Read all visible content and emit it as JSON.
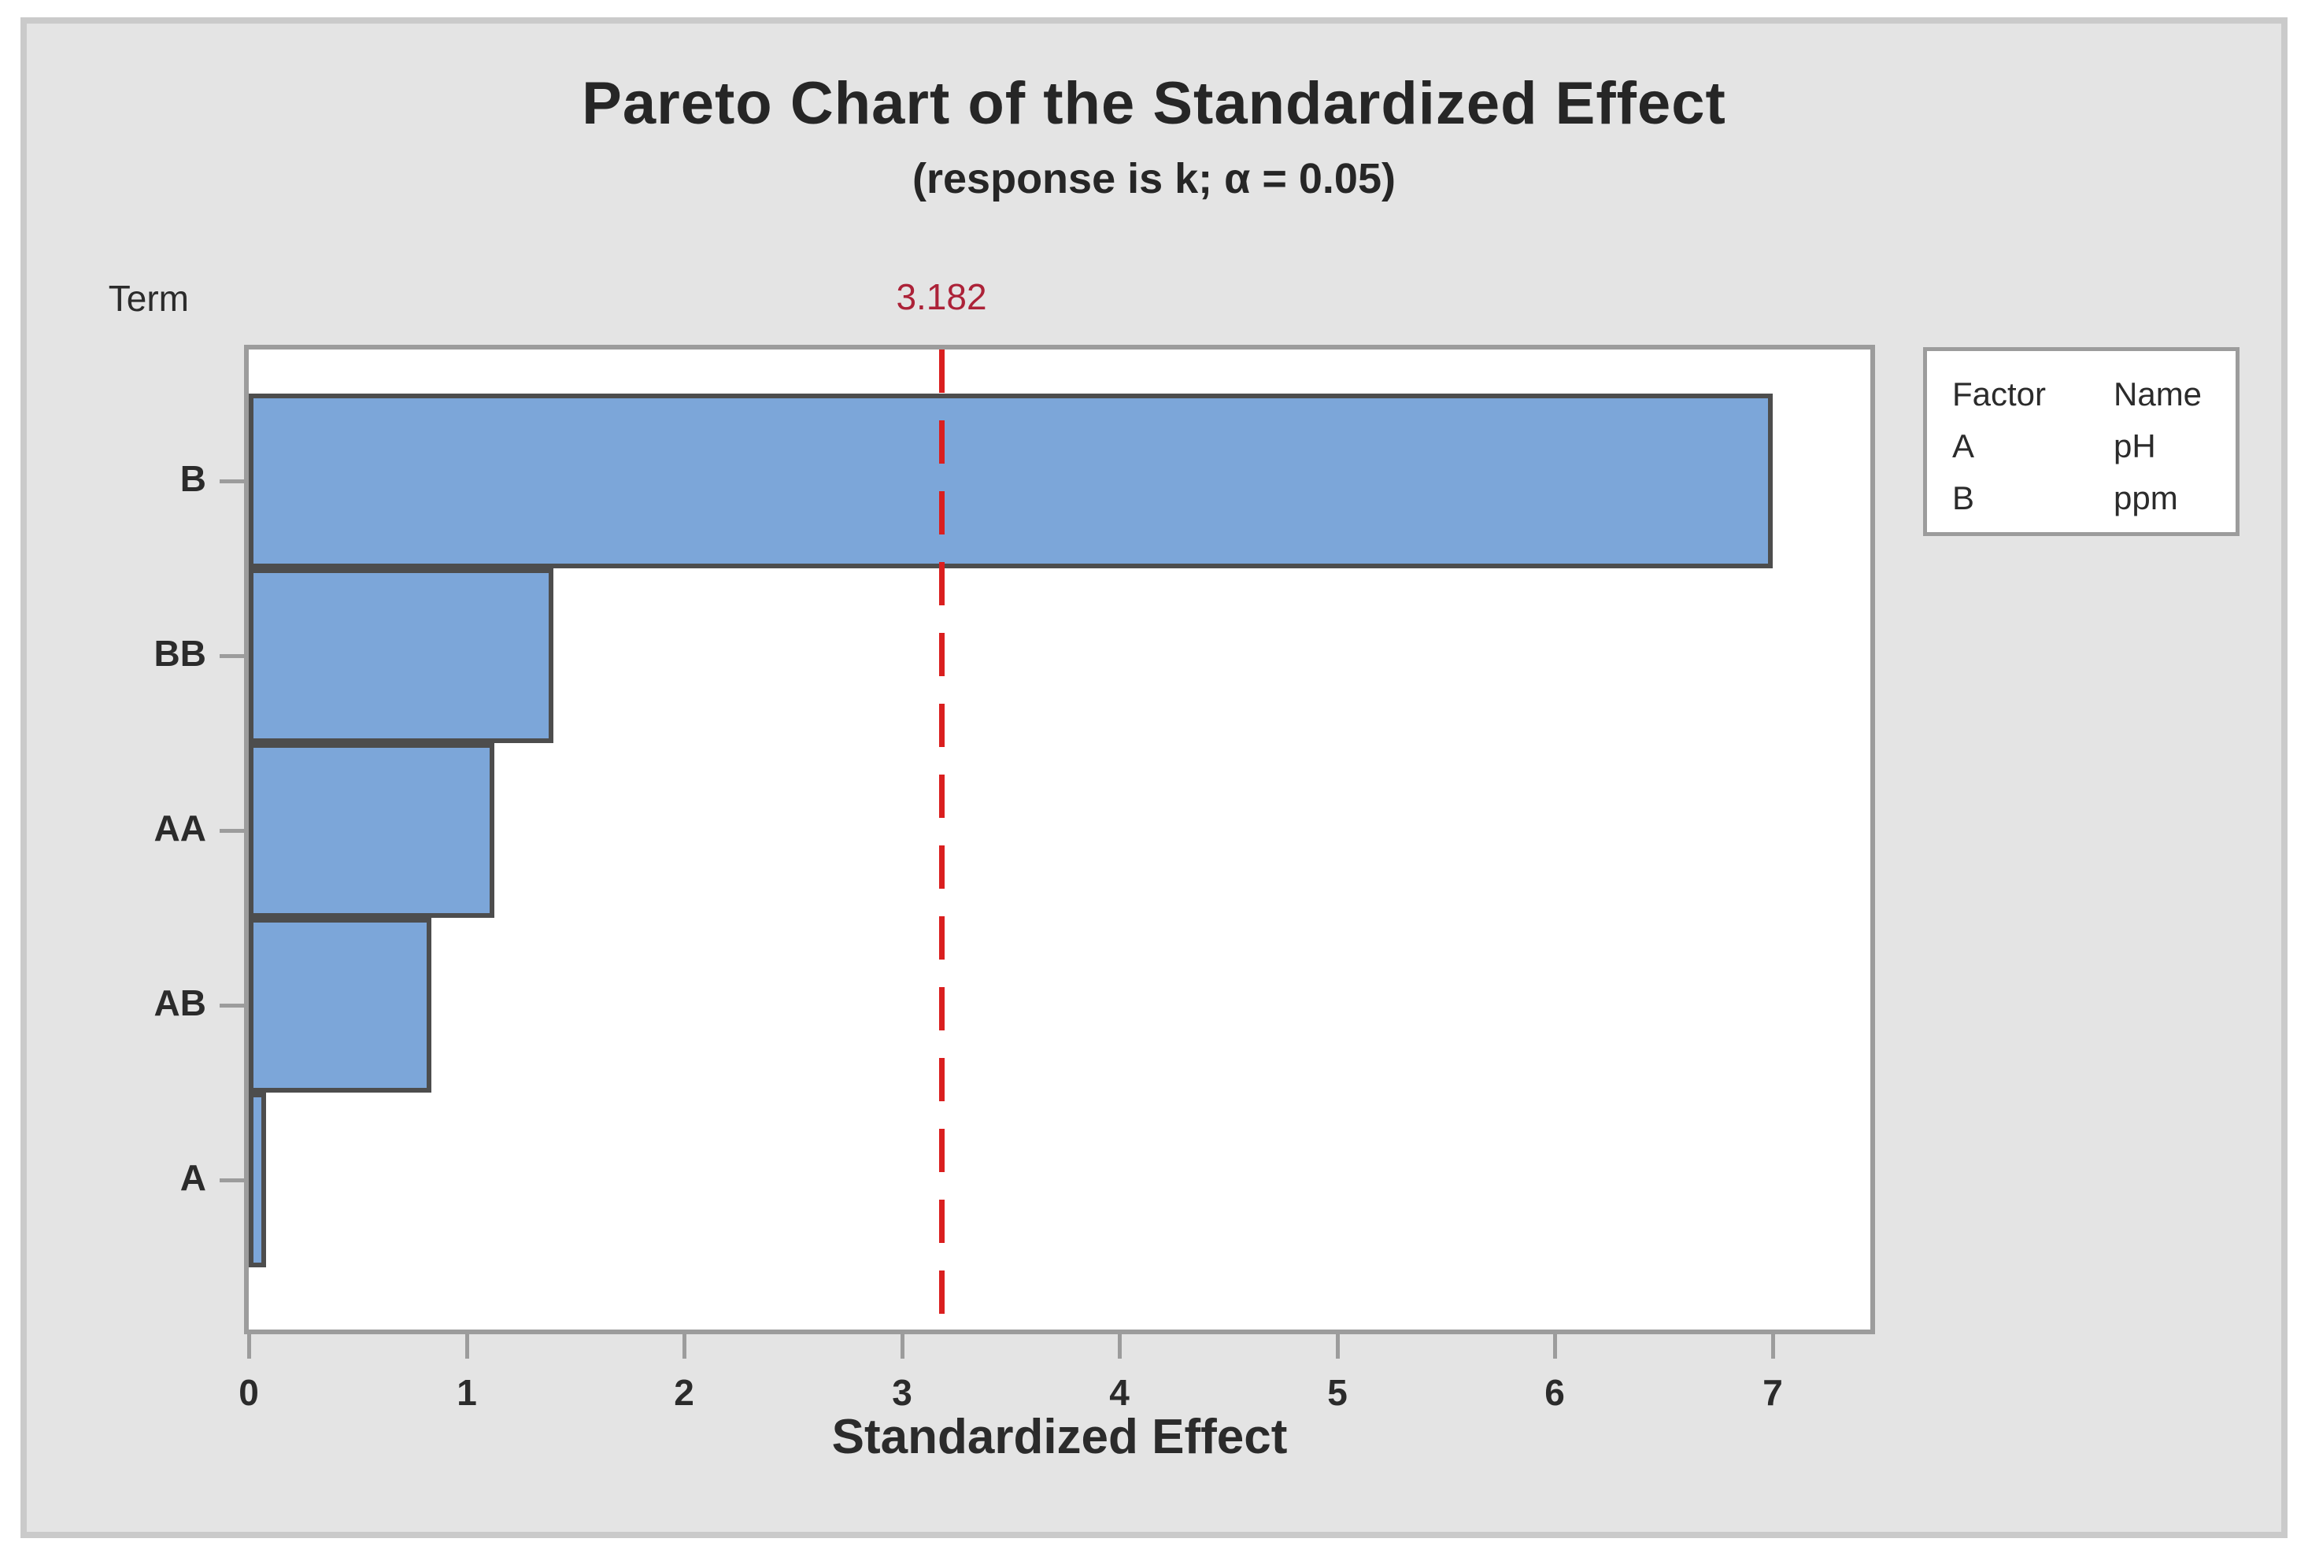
{
  "window": {
    "background": "#FFFFFF",
    "panel_background": "#E4E4E4",
    "panel_border": "#CACACA",
    "plot_background": "#FFFFFF",
    "axis_color": "#9C9C9C"
  },
  "header": {
    "title": "Pareto Chart of the Standardized Effect",
    "subtitle": "(response is k; α = 0.05)"
  },
  "y_axis": {
    "label": "Term"
  },
  "x_axis": {
    "label": "Standardized Effect"
  },
  "reference_line": {
    "value": 3.182,
    "label": "3.182",
    "label_color": "#AC2238",
    "line_color": "#DA1F1F"
  },
  "legend": {
    "header": {
      "factor": "Factor",
      "name": "Name"
    },
    "rows": [
      {
        "factor": "A",
        "name": "pH"
      },
      {
        "factor": "B",
        "name": "ppm"
      }
    ]
  },
  "chart_data": {
    "type": "bar",
    "orientation": "horizontal",
    "title": "Pareto Chart of the Standardized Effect",
    "subtitle": "(response is k; α = 0.05)",
    "response": "k",
    "alpha": 0.05,
    "categories": [
      "B",
      "BB",
      "AA",
      "AB",
      "A"
    ],
    "values": [
      7.0,
      1.4,
      1.13,
      0.84,
      0.08
    ],
    "xlabel": "Standardized Effect",
    "ylabel": "Term",
    "xlim": [
      0,
      7.45
    ],
    "xticks": [
      0,
      1,
      2,
      3,
      4,
      5,
      6,
      7
    ],
    "reference_line": 3.182,
    "grid": false,
    "legend_position": "right",
    "bar_color": "#7CA6D9",
    "bar_border_color": "#4D4D4D",
    "factors": [
      {
        "factor": "A",
        "name": "pH"
      },
      {
        "factor": "B",
        "name": "ppm"
      }
    ]
  }
}
